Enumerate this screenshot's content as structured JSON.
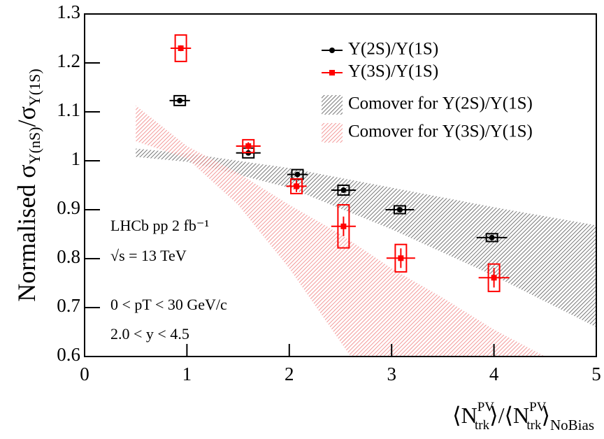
{
  "chart_data": {
    "type": "scatter",
    "ylabel": {
      "main": "Normalised σ",
      "sub1": "Υ(nS)",
      "mid": "/σ",
      "sub2": "Υ(1S)"
    },
    "xlabel": {
      "open1": "⟨N",
      "sup1": "PV",
      "sub1": "trk",
      "mid": "⟩/⟨N",
      "sup2": "PV",
      "sub2": "trk",
      "close": "⟩",
      "sub3": "NoBias"
    },
    "annotations": [
      "LHCb pp 2 fb⁻¹",
      "√s = 13 TeV",
      "0 < pT < 30 GeV/c",
      "2.0 < y < 4.5"
    ],
    "xlim": [
      0,
      5
    ],
    "ylim": [
      0.6,
      1.3
    ],
    "xticks": [
      0,
      1,
      2,
      3,
      4,
      5
    ],
    "yticks": [
      0.6,
      0.7,
      0.8,
      0.9,
      1,
      1.1,
      1.2,
      1.3
    ],
    "legend": "upper right",
    "series": [
      {
        "name": "Υ(2S)/Υ(1S)",
        "kind": "points",
        "color": "#000000",
        "x": [
          0.93,
          1.6,
          2.08,
          2.53,
          3.08,
          3.98
        ],
        "values": [
          1.123,
          1.016,
          0.972,
          0.94,
          0.9,
          0.843
        ],
        "xerr": [
          0.1,
          0.12,
          0.1,
          0.12,
          0.14,
          0.15
        ],
        "yerr": [
          0.004,
          0.004,
          0.004,
          0.004,
          0.004,
          0.005
        ],
        "syst": [
          0.01,
          0.01,
          0.01,
          0.01,
          0.008,
          0.008
        ]
      },
      {
        "name": "Υ(3S)/Υ(1S)",
        "kind": "points",
        "color": "#ff0000",
        "x": [
          0.94,
          1.6,
          2.07,
          2.53,
          3.09,
          4.0
        ],
        "values": [
          1.23,
          1.03,
          0.948,
          0.866,
          0.801,
          0.761
        ],
        "xerr": [
          0.1,
          0.12,
          0.1,
          0.12,
          0.14,
          0.15
        ],
        "yerr": [
          0.006,
          0.008,
          0.012,
          0.02,
          0.02,
          0.02
        ],
        "syst": [
          0.027,
          0.013,
          0.015,
          0.044,
          0.028,
          0.028
        ]
      },
      {
        "name": "Comover for Υ(2S)/Υ(1S)",
        "kind": "band",
        "color": "#555555",
        "x_upper": [
          0.5,
          1,
          2,
          3,
          4,
          5
        ],
        "upper": [
          1.025,
          1.015,
          0.985,
          0.945,
          0.905,
          0.868
        ],
        "x_lower": [
          0.5,
          1,
          2,
          3,
          4,
          5
        ],
        "lower": [
          1.008,
          0.998,
          0.945,
          0.86,
          0.765,
          0.66
        ]
      },
      {
        "name": "Comover for Υ(3S)/Υ(1S)",
        "kind": "band",
        "color": "#f08080",
        "x_upper": [
          0.5,
          1,
          1.5,
          2,
          2.5,
          3,
          3.5,
          4,
          4.5
        ],
        "upper": [
          1.113,
          1.03,
          0.975,
          0.91,
          0.85,
          0.78,
          0.72,
          0.655,
          0.6
        ],
        "x_lower": [
          0.5,
          1,
          1.5,
          2,
          2.5,
          2.6
        ],
        "lower": [
          1.04,
          1.005,
          0.91,
          0.78,
          0.63,
          0.6
        ]
      }
    ]
  }
}
